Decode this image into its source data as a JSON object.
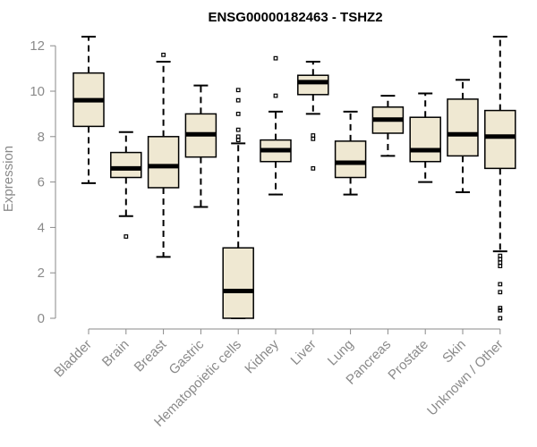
{
  "chart_data": {
    "type": "boxplot",
    "title": "ENSG00000182463 - TSHZ2",
    "xlabel": "",
    "ylabel": "Expression",
    "ylim": [
      0,
      12.4
    ],
    "yticks": [
      0,
      2,
      4,
      6,
      8,
      10,
      12
    ],
    "grid": false,
    "box_fill": "#efe8d2",
    "box_stroke": "#000000",
    "categories": [
      "Bladder",
      "Brain",
      "Breast",
      "Gastric",
      "Hematopoietic cells",
      "Kidney",
      "Liver",
      "Lung",
      "Pancreas",
      "Prostate",
      "Skin",
      "Unknown / Other"
    ],
    "boxes": [
      {
        "category": "Bladder",
        "whisker_low": 5.95,
        "q1": 8.45,
        "median": 9.6,
        "q3": 10.8,
        "whisker_high": 12.4,
        "outliers": []
      },
      {
        "category": "Brain",
        "whisker_low": 4.5,
        "q1": 6.2,
        "median": 6.6,
        "q3": 7.3,
        "whisker_high": 8.2,
        "outliers": [
          3.6
        ]
      },
      {
        "category": "Breast",
        "whisker_low": 2.7,
        "q1": 5.75,
        "median": 6.7,
        "q3": 8.0,
        "whisker_high": 11.3,
        "outliers": [
          11.6
        ]
      },
      {
        "category": "Gastric",
        "whisker_low": 4.9,
        "q1": 7.1,
        "median": 8.1,
        "q3": 9.0,
        "whisker_high": 10.25,
        "outliers": []
      },
      {
        "category": "Hematopoietic cells",
        "whisker_low": 0.0,
        "q1": 0.0,
        "median": 1.2,
        "q3": 3.1,
        "whisker_high": 7.7,
        "outliers": [
          7.85,
          8.0,
          8.3,
          9.0,
          9.6,
          10.05
        ]
      },
      {
        "category": "Kidney",
        "whisker_low": 5.45,
        "q1": 6.9,
        "median": 7.4,
        "q3": 7.85,
        "whisker_high": 9.1,
        "outliers": [
          9.8,
          11.45
        ]
      },
      {
        "category": "Liver",
        "whisker_low": 9.0,
        "q1": 9.85,
        "median": 10.4,
        "q3": 10.7,
        "whisker_high": 11.3,
        "outliers": [
          6.6,
          7.9,
          8.05
        ]
      },
      {
        "category": "Lung",
        "whisker_low": 5.45,
        "q1": 6.2,
        "median": 6.85,
        "q3": 7.8,
        "whisker_high": 9.1,
        "outliers": []
      },
      {
        "category": "Pancreas",
        "whisker_low": 7.15,
        "q1": 8.15,
        "median": 8.75,
        "q3": 9.3,
        "whisker_high": 9.8,
        "outliers": []
      },
      {
        "category": "Prostate",
        "whisker_low": 6.0,
        "q1": 6.9,
        "median": 7.4,
        "q3": 8.85,
        "whisker_high": 9.9,
        "outliers": []
      },
      {
        "category": "Skin",
        "whisker_low": 5.55,
        "q1": 7.15,
        "median": 8.1,
        "q3": 9.65,
        "whisker_high": 10.5,
        "outliers": []
      },
      {
        "category": "Unknown / Other",
        "whisker_low": 2.95,
        "q1": 6.6,
        "median": 8.0,
        "q3": 9.15,
        "whisker_high": 12.4,
        "outliers": [
          0.0,
          0.35,
          0.45,
          1.15,
          1.5,
          2.3,
          2.45,
          2.6,
          2.75
        ]
      }
    ]
  }
}
